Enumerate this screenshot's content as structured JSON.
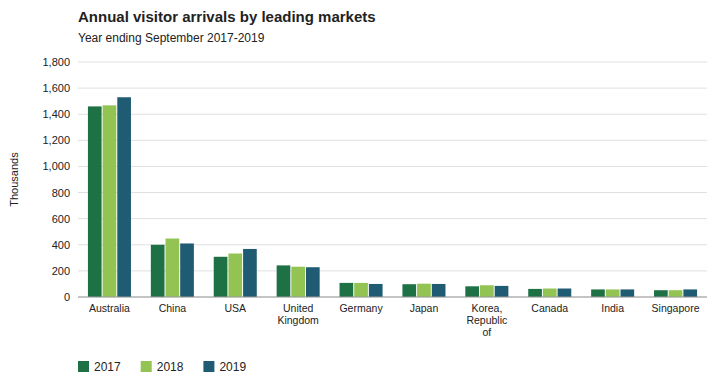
{
  "chart_data": {
    "type": "bar",
    "title": "Annual visitor arrivals by leading markets",
    "subtitle": "Year ending  September 2017-2019",
    "ylabel": "Thousands",
    "categories": [
      "Australia",
      "China",
      "USA",
      "United\nKingdom",
      "Germany",
      "Japan",
      "Korea,\nRepublic\nof",
      "Canada",
      "India",
      "Singapore"
    ],
    "series": [
      {
        "name": "2017",
        "color": "#1e7145",
        "values": [
          1460,
          400,
          308,
          242,
          108,
          98,
          82,
          62,
          58,
          52
        ]
      },
      {
        "name": "2018",
        "color": "#92c353",
        "values": [
          1468,
          448,
          333,
          232,
          108,
          102,
          90,
          65,
          58,
          52
        ]
      },
      {
        "name": "2019",
        "color": "#1f5c73",
        "values": [
          1530,
          410,
          368,
          228,
          100,
          100,
          85,
          65,
          58,
          58
        ]
      }
    ],
    "ylim": [
      0,
      1800
    ],
    "yticks": [
      0,
      200,
      400,
      600,
      800,
      {
        "value": 1000,
        "label": "1,000"
      },
      {
        "value": 1200,
        "label": "1,200"
      },
      {
        "value": 1400,
        "label": "1,400"
      },
      {
        "value": 1600,
        "label": "1,600"
      },
      {
        "value": 1800,
        "label": "1,800"
      }
    ],
    "grid": true,
    "legend": "bottom"
  }
}
